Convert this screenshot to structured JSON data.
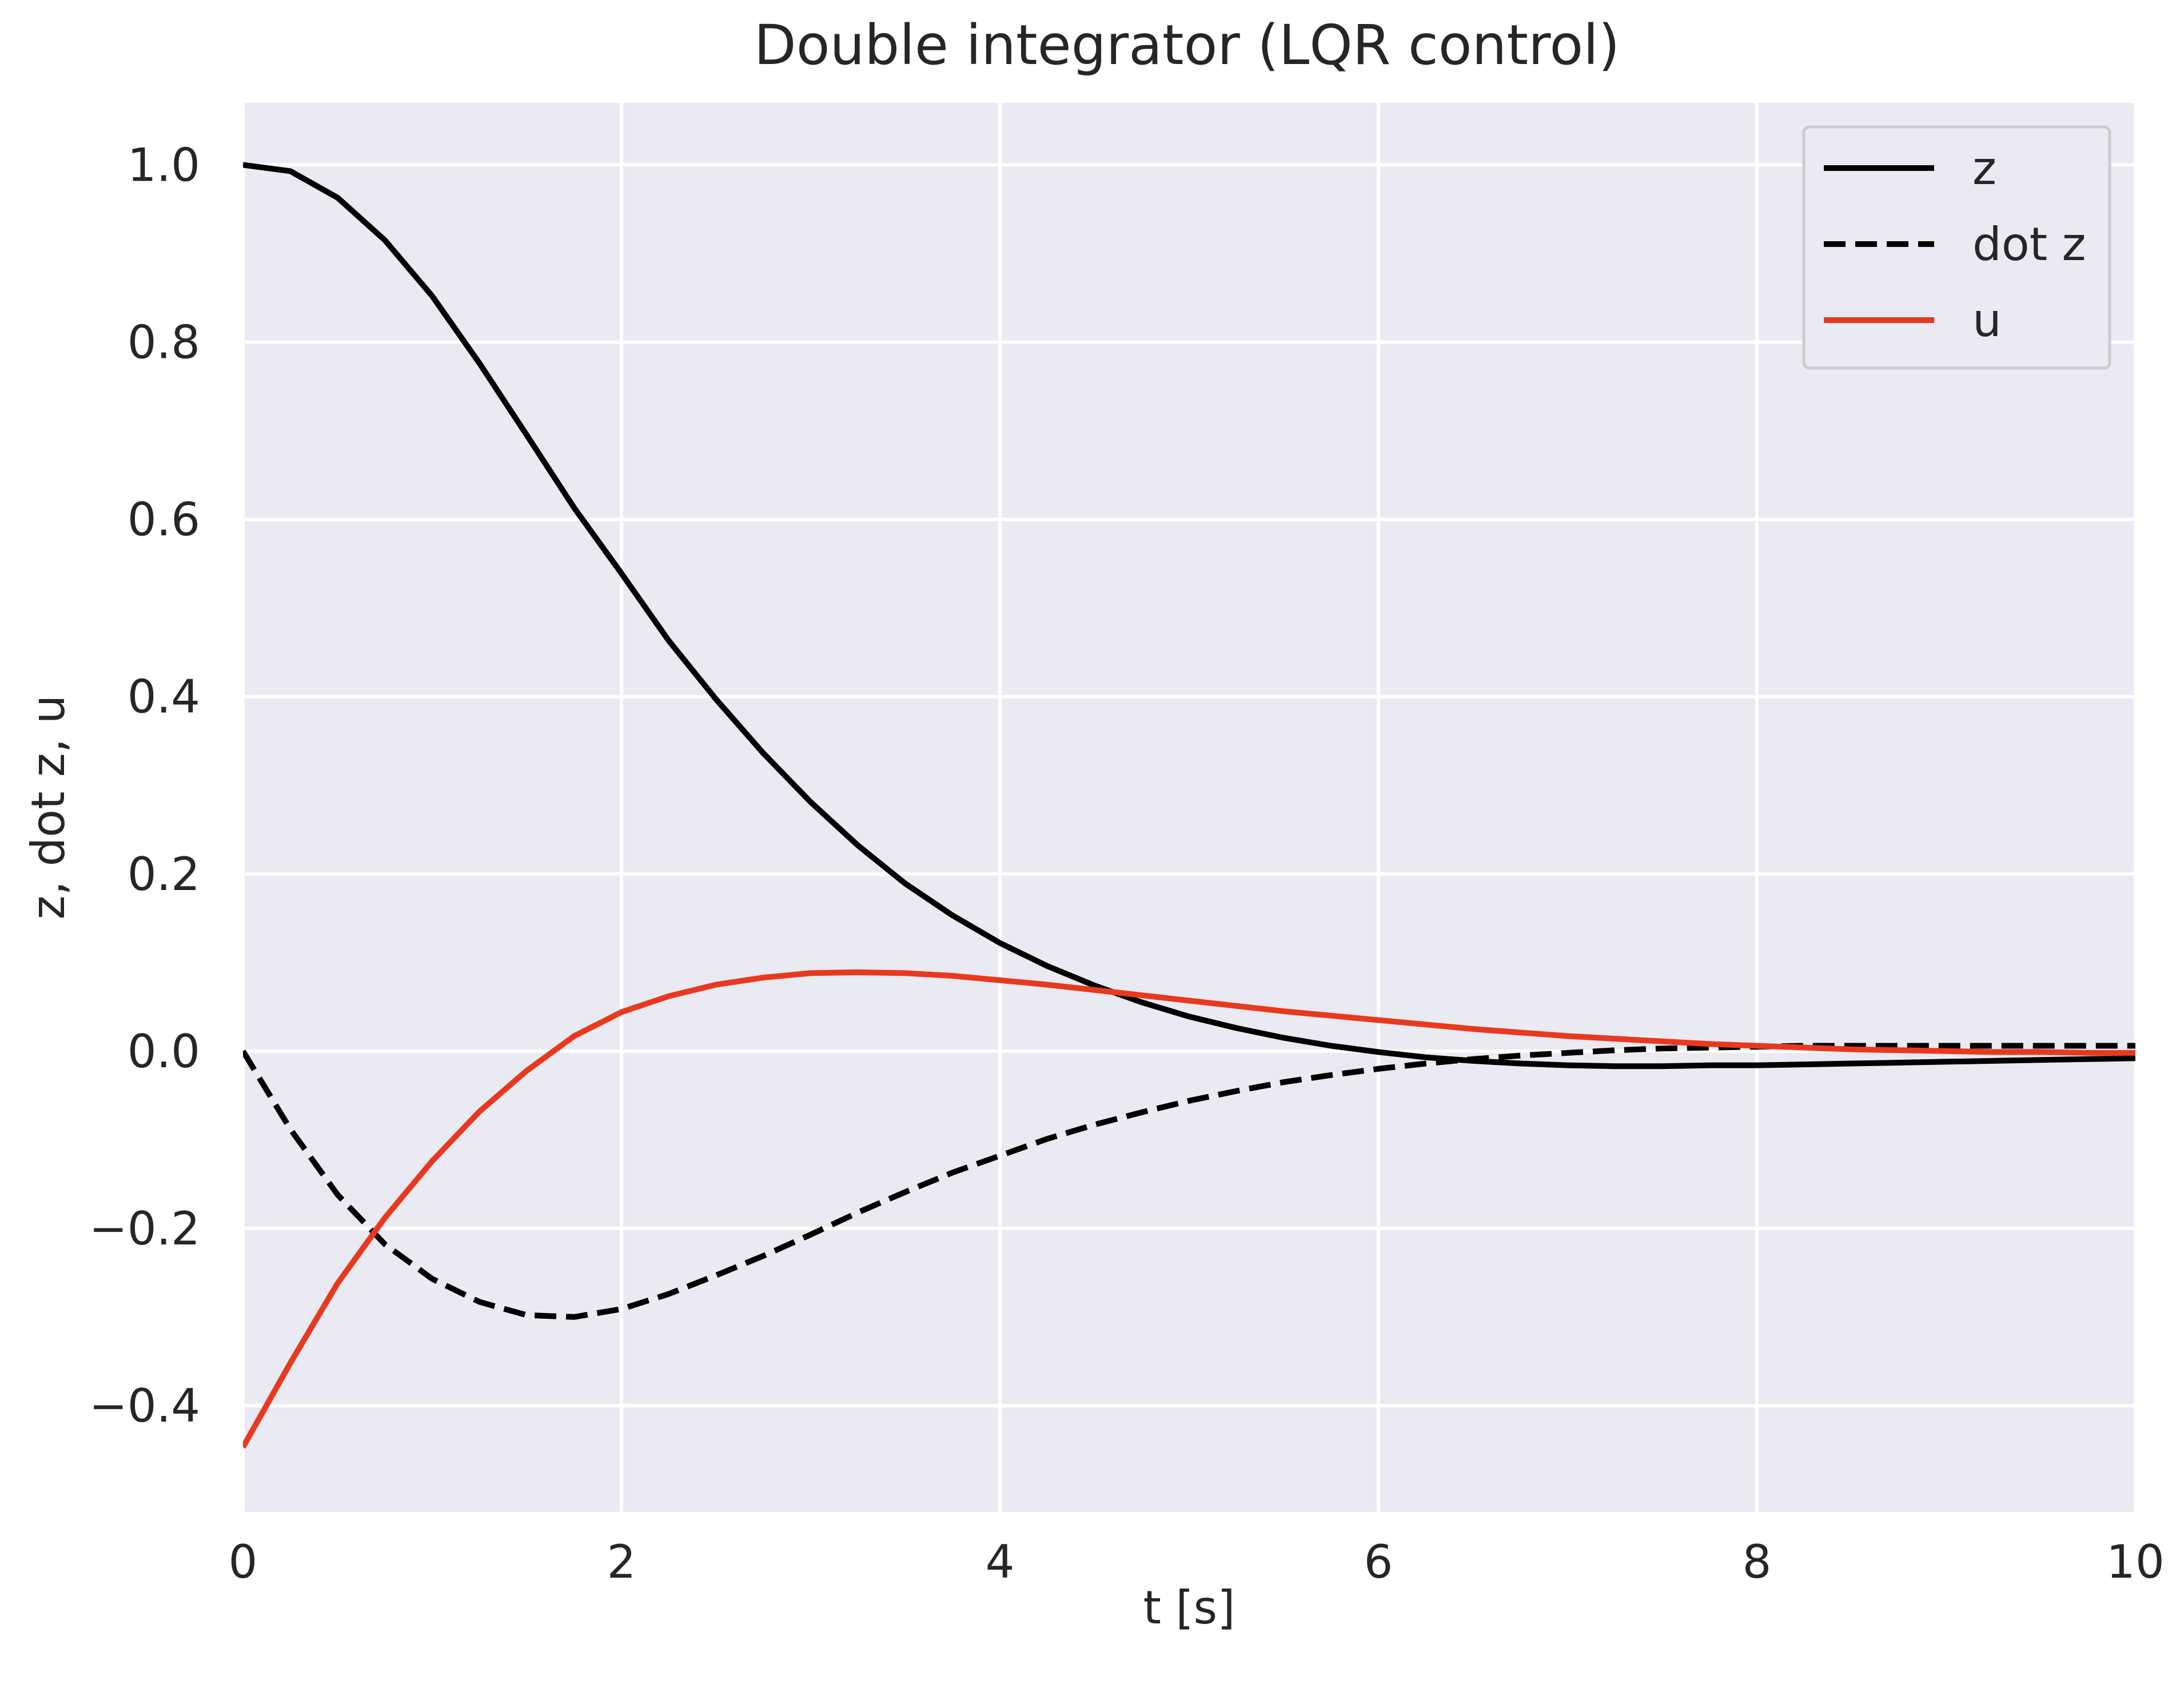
{
  "chart_data": {
    "type": "line",
    "title": "Double integrator (LQR control)",
    "xlabel": "t [s]",
    "ylabel": "z, dot z, u",
    "xlim": [
      0,
      10
    ],
    "ylim": [
      -0.52,
      1.07
    ],
    "xticks": [
      0,
      2,
      4,
      6,
      8,
      10
    ],
    "xtick_labels": [
      "0",
      "2",
      "4",
      "6",
      "8",
      "10"
    ],
    "yticks": [
      -0.4,
      -0.2,
      0.0,
      0.2,
      0.4,
      0.6,
      0.8,
      1.0
    ],
    "ytick_labels": [
      "−0.4",
      "−0.2",
      "0.0",
      "0.2",
      "0.4",
      "0.6",
      "0.8",
      "1.0"
    ],
    "grid": true,
    "legend_position": "top-right",
    "x": [
      0,
      0.25,
      0.5,
      0.75,
      1.0,
      1.25,
      1.5,
      1.75,
      2.0,
      2.25,
      2.5,
      2.75,
      3.0,
      3.25,
      3.5,
      3.75,
      4.0,
      4.25,
      4.5,
      4.75,
      5.0,
      5.25,
      5.5,
      5.75,
      6.0,
      6.25,
      6.5,
      6.75,
      7.0,
      7.25,
      7.5,
      7.75,
      8.0,
      8.25,
      8.5,
      8.75,
      9.0,
      9.25,
      9.5,
      9.75,
      10.0
    ],
    "series": [
      {
        "name": "z",
        "color": "#000000",
        "dash": "solid",
        "values": [
          1.0,
          0.993,
          0.963,
          0.915,
          0.852,
          0.776,
          0.695,
          0.613,
          0.539,
          0.463,
          0.397,
          0.336,
          0.281,
          0.232,
          0.189,
          0.153,
          0.122,
          0.096,
          0.074,
          0.055,
          0.039,
          0.026,
          0.015,
          0.006,
          -0.001,
          -0.007,
          -0.011,
          -0.014,
          -0.016,
          -0.017,
          -0.017,
          -0.016,
          -0.016,
          -0.015,
          -0.014,
          -0.013,
          -0.012,
          -0.011,
          -0.01,
          -0.009,
          -0.008
        ]
      },
      {
        "name": "dot z",
        "color": "#000000",
        "dash": "dashed",
        "values": [
          0.0,
          -0.088,
          -0.162,
          -0.218,
          -0.257,
          -0.283,
          -0.298,
          -0.3,
          -0.291,
          -0.274,
          -0.253,
          -0.231,
          -0.207,
          -0.182,
          -0.159,
          -0.137,
          -0.118,
          -0.099,
          -0.083,
          -0.069,
          -0.056,
          -0.045,
          -0.035,
          -0.027,
          -0.02,
          -0.014,
          -0.009,
          -0.005,
          -0.002,
          0.001,
          0.003,
          0.004,
          0.005,
          0.006,
          0.006,
          0.006,
          0.006,
          0.006,
          0.006,
          0.006,
          0.006
        ]
      },
      {
        "name": "u",
        "color": "#e8391f",
        "dash": "solid",
        "values": [
          -0.447,
          -0.352,
          -0.262,
          -0.188,
          -0.124,
          -0.068,
          -0.022,
          0.017,
          0.044,
          0.062,
          0.075,
          0.083,
          0.088,
          0.089,
          0.088,
          0.085,
          0.08,
          0.075,
          0.069,
          0.063,
          0.057,
          0.051,
          0.045,
          0.04,
          0.035,
          0.03,
          0.025,
          0.021,
          0.017,
          0.014,
          0.011,
          0.008,
          0.006,
          0.004,
          0.002,
          0.001,
          0.0,
          -0.001,
          -0.001,
          -0.002,
          -0.002
        ]
      }
    ]
  }
}
